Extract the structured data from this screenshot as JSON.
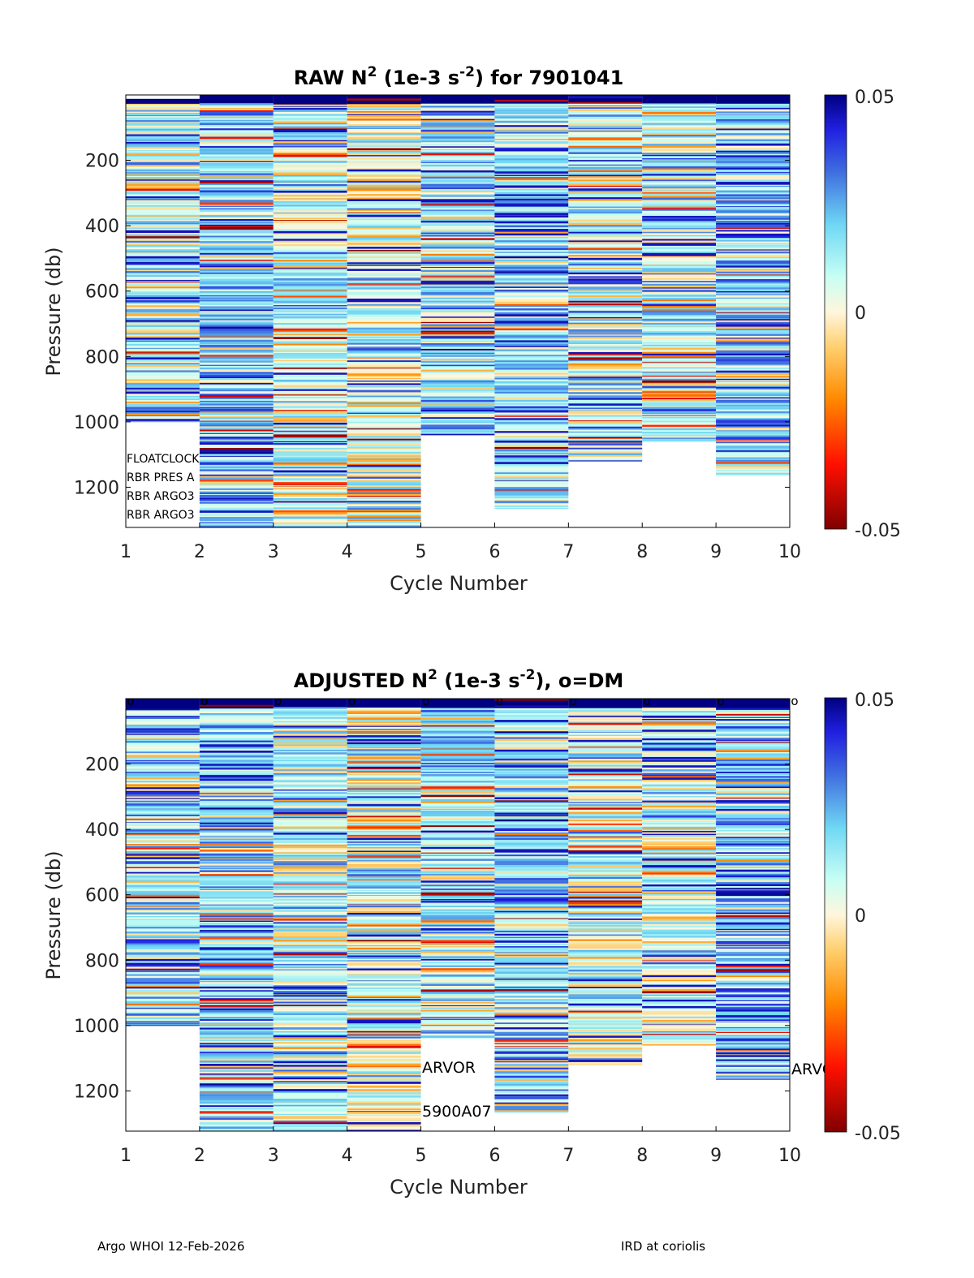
{
  "chart_data": [
    {
      "type": "heatmap",
      "title_main": "RAW N",
      "title_sup": "2",
      "title_mid": " (1e-3 s",
      "title_sup2": "-2",
      "title_end": ") for 7901041",
      "xlabel": "Cycle Number",
      "ylabel": "Pressure (db)",
      "xlim": [
        1,
        10
      ],
      "ylim": [
        0,
        1323
      ],
      "y_reversed": true,
      "xticks": [
        "1",
        "2",
        "3",
        "4",
        "5",
        "6",
        "7",
        "8",
        "9",
        "10"
      ],
      "yticks": [
        "200",
        "400",
        "600",
        "800",
        "1000",
        "1200"
      ],
      "ytick_values": [
        200,
        400,
        600,
        800,
        1000,
        1200
      ],
      "colorbar": {
        "min": -0.05,
        "max": 0.05,
        "ticks": [
          "0.05",
          "0",
          "-0.05"
        ]
      },
      "profiles": [
        {
          "cycle": 1,
          "min_pressure": 12,
          "max_pressure": 1000
        },
        {
          "cycle": 2,
          "min_pressure": 0,
          "max_pressure": 1323
        },
        {
          "cycle": 3,
          "min_pressure": 0,
          "max_pressure": 1323
        },
        {
          "cycle": 4,
          "min_pressure": 0,
          "max_pressure": 1323
        },
        {
          "cycle": 5,
          "min_pressure": 0,
          "max_pressure": 1040
        },
        {
          "cycle": 6,
          "min_pressure": 0,
          "max_pressure": 1265
        },
        {
          "cycle": 7,
          "min_pressure": 0,
          "max_pressure": 1120
        },
        {
          "cycle": 8,
          "min_pressure": 0,
          "max_pressure": 1060
        },
        {
          "cycle": 9,
          "min_pressure": 0,
          "max_pressure": 1165
        }
      ],
      "annotations": [
        "FLOATCLOCK",
        "RBR PRES A",
        "RBR ARGO3",
        "RBR ARGO3"
      ]
    },
    {
      "type": "heatmap",
      "title_main": "ADJUSTED N",
      "title_sup": "2",
      "title_mid": " (1e-3 s",
      "title_sup2": "-2",
      "title_end": "), o=DM",
      "xlabel": "Cycle Number",
      "ylabel": "Pressure (db)",
      "xlim": [
        1,
        10
      ],
      "ylim": [
        0,
        1323
      ],
      "y_reversed": true,
      "xticks": [
        "1",
        "2",
        "3",
        "4",
        "5",
        "6",
        "7",
        "8",
        "9",
        "10"
      ],
      "yticks": [
        "200",
        "400",
        "600",
        "800",
        "1000",
        "1200"
      ],
      "ytick_values": [
        200,
        400,
        600,
        800,
        1000,
        1200
      ],
      "colorbar": {
        "min": -0.05,
        "max": 0.05,
        "ticks": [
          "0.05",
          "0",
          "-0.05"
        ]
      },
      "dm_marker": "o",
      "dm_cycles": [
        1,
        2,
        3,
        4,
        5,
        6,
        7,
        8,
        9,
        10
      ],
      "profiles": [
        {
          "cycle": 1,
          "min_pressure": 0,
          "max_pressure": 1000
        },
        {
          "cycle": 2,
          "min_pressure": 0,
          "max_pressure": 1323
        },
        {
          "cycle": 3,
          "min_pressure": 0,
          "max_pressure": 1323
        },
        {
          "cycle": 4,
          "min_pressure": 0,
          "max_pressure": 1323
        },
        {
          "cycle": 5,
          "min_pressure": 0,
          "max_pressure": 1040
        },
        {
          "cycle": 6,
          "min_pressure": 0,
          "max_pressure": 1265
        },
        {
          "cycle": 7,
          "min_pressure": 0,
          "max_pressure": 1120
        },
        {
          "cycle": 8,
          "min_pressure": 0,
          "max_pressure": 1060
        },
        {
          "cycle": 9,
          "min_pressure": 0,
          "max_pressure": 1165
        }
      ],
      "annotations": [
        "ARVOR",
        "5900A07",
        "ARVOR"
      ]
    }
  ],
  "footer": {
    "left": "Argo WHOI 12-Feb-2026",
    "right": "IRD at coriolis"
  }
}
